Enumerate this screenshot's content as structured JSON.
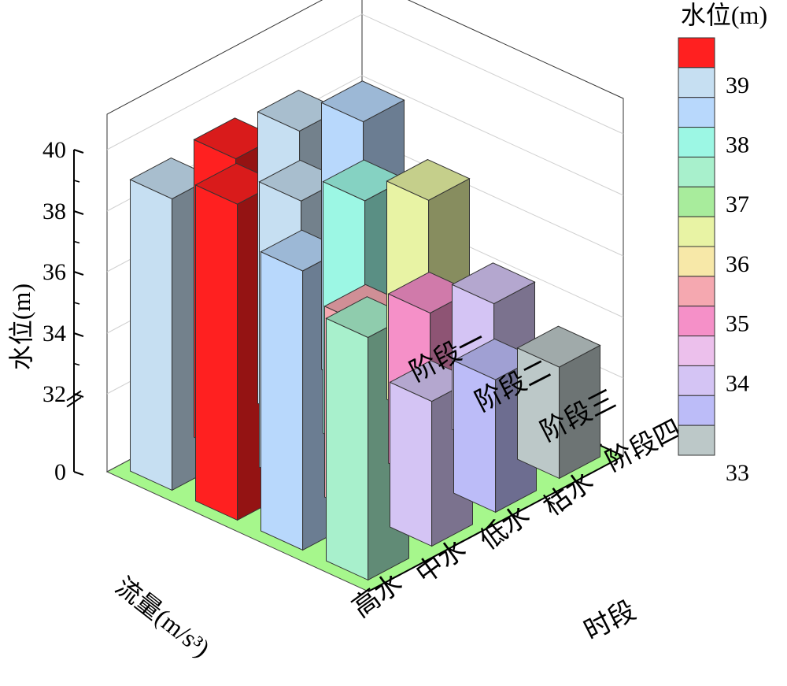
{
  "chart_data": {
    "type": "bar3d",
    "zlabel": "水位(m)",
    "z_ticks": [
      "40",
      "38",
      "36",
      "34",
      "32",
      "0"
    ],
    "z_break_between": [
      "32",
      "0"
    ],
    "x_axis_title": "流量(m/s³)",
    "x_categories": [
      "高水",
      "中水",
      "低水",
      "枯水"
    ],
    "y_axis_title": "时段",
    "y_categories": [
      "阶段一",
      "阶段二",
      "阶段三",
      "阶段四"
    ],
    "values": [
      [
        39.0,
        39.2,
        39.0,
        38.2
      ],
      [
        39.8,
        38.8,
        37.7,
        36.6
      ],
      [
        38.6,
        35.7,
        35.0,
        34.2
      ],
      [
        37.4,
        34.2,
        33.8,
        33.1
      ]
    ],
    "values_row_order": "y_categories (阶段一 … 阶段四)",
    "values_col_order": "x_categories (高水 … 枯水)",
    "floor_color": "#a6f78c",
    "colorbar": {
      "title": "水位(m)",
      "tick_labels": [
        "39",
        "38",
        "37",
        "36",
        "35",
        "34",
        "33"
      ],
      "colors": [
        "#ff2020",
        "#c6dff2",
        "#b8d8fc",
        "#9cf7e4",
        "#a8f0cc",
        "#a8ec9c",
        "#e8f3a4",
        "#f7e8a8",
        "#f5a8b0",
        "#f590c8",
        "#ecc0ec",
        "#d4c4f4",
        "#bcbcf8",
        "#bcc8c8"
      ]
    }
  }
}
